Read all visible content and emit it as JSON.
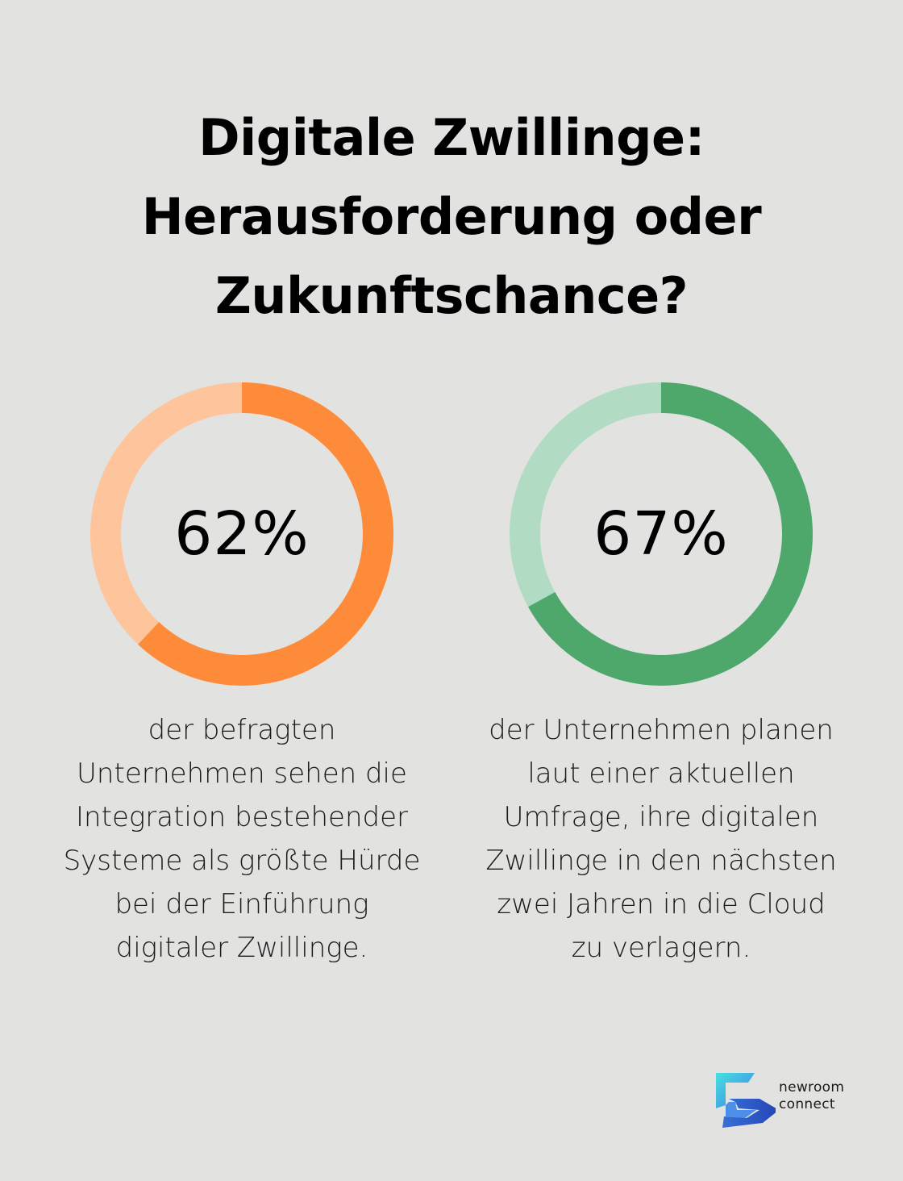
{
  "title": {
    "line1": "Digitale Zwillinge:",
    "line2": "Herausforderung oder",
    "line3": "Zukunftschance?"
  },
  "stats": [
    {
      "value_label": "62%",
      "description_lines": [
        "der befragten",
        "Unternehmen sehen die",
        "Integration bestehender",
        "Systeme als größte Hürde",
        "bei der Einführung",
        "digitaler Zwillinge."
      ],
      "color": "#fd8b39",
      "track_color": "#fec59c"
    },
    {
      "value_label": "67%",
      "description_lines": [
        "der Unternehmen planen",
        "laut einer aktuellen",
        "Umfrage, ihre digitalen",
        "Zwillinge in den nächsten",
        "zwei Jahren in die Cloud",
        "zu verlagern."
      ],
      "color": "#4ea86b",
      "track_color": "#b1dcc3"
    }
  ],
  "chart_data": [
    {
      "type": "pie",
      "values": [
        62,
        38
      ],
      "data_label": "62%"
    },
    {
      "type": "pie",
      "values": [
        67,
        33
      ],
      "data_label": "67%"
    }
  ],
  "logo": {
    "line1": "newroom",
    "line2": "connect",
    "icon": "newroom-connect-logo-icon"
  }
}
